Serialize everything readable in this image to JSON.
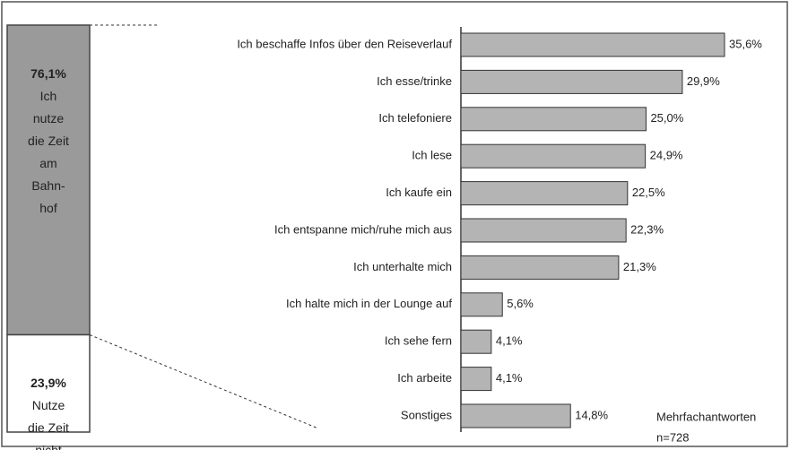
{
  "chart_data": [
    {
      "type": "stacked-column",
      "series": [
        {
          "name": "Ich nutze die Zeit am Bahn-hof",
          "values": [
            76.1
          ],
          "value_labels": [
            "76,1%"
          ],
          "color": "#9a9a9a"
        },
        {
          "name": "Nutze die Zeit nicht",
          "values": [
            23.9
          ],
          "value_labels": [
            "23,9%"
          ],
          "color": "#ffffff"
        }
      ]
    },
    {
      "type": "hbar",
      "categories": [
        "Ich beschaffe Infos über den Reiseverlauf",
        "Ich esse/trinke",
        "Ich telefoniere",
        "Ich lese",
        "Ich kaufe ein",
        "Ich entspanne mich/ruhe mich aus",
        "Ich unterhalte mich",
        "Ich halte mich in der Lounge auf",
        "Ich sehe fern",
        "Ich arbeite",
        "Sonstiges"
      ],
      "values": [
        35.6,
        29.9,
        25.0,
        24.9,
        22.5,
        22.3,
        21.3,
        5.6,
        4.1,
        4.1,
        14.8
      ],
      "value_labels": [
        "35,6%",
        "29,9%",
        "25,0%",
        "24,9%",
        "22,5%",
        "22,3%",
        "21,3%",
        "5,6%",
        "4,1%",
        "4,1%",
        "14,8%"
      ],
      "color": "#b4b4b4",
      "annotations": [
        "Mehrfachantworten",
        "n=728"
      ]
    }
  ]
}
